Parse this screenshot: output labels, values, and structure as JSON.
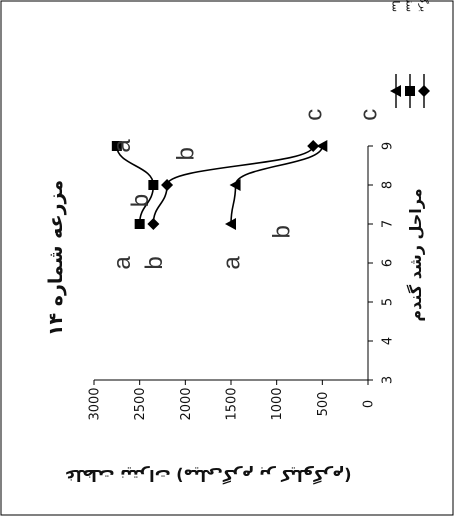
{
  "chart_data": {
    "type": "line",
    "title": "مزرعه شماره ۱۴",
    "xlabel": "مراحل رشد گندم",
    "ylabel": "غلظت نیترات (میلی‌گرم بر کیلوگرم)",
    "xlim": [
      3,
      9
    ],
    "ylim": [
      0,
      3000
    ],
    "x_ticks": [
      3,
      4,
      5,
      6,
      7,
      8,
      9
    ],
    "y_ticks": [
      0,
      500,
      1000,
      1500,
      2000,
      2500,
      3000
    ],
    "rotated": "90deg-counterclockwise",
    "series": [
      {
        "name": "برگ پرچم",
        "marker": "diamond",
        "x": [
          7,
          8,
          9
        ],
        "y": [
          2350,
          2200,
          600
        ]
      },
      {
        "name": "سنبله",
        "marker": "square",
        "x": [
          7,
          8,
          9
        ],
        "y": [
          2500,
          2350,
          2750
        ]
      },
      {
        "name": "ساقه",
        "marker": "triangle",
        "x": [
          7,
          8,
          9
        ],
        "y": [
          1500,
          1450,
          500
        ]
      }
    ],
    "annotations": [
      {
        "text": "a",
        "x": 6,
        "y": 2700
      },
      {
        "text": "b",
        "x": 6,
        "y": 2350
      },
      {
        "text": "a",
        "x": 6,
        "y": 1500
      },
      {
        "text": "b",
        "x": 7.6,
        "y": 2500
      },
      {
        "text": "b",
        "x": 6.8,
        "y": 950
      },
      {
        "text": "a",
        "x": 9,
        "y": 2700
      },
      {
        "text": "b",
        "x": 8.8,
        "y": 2000
      },
      {
        "text": "c",
        "x": 9.8,
        "y": 600
      },
      {
        "text": "c",
        "x": 9.8,
        "y": 0
      }
    ],
    "legend_position": "top-right",
    "grid": false
  }
}
